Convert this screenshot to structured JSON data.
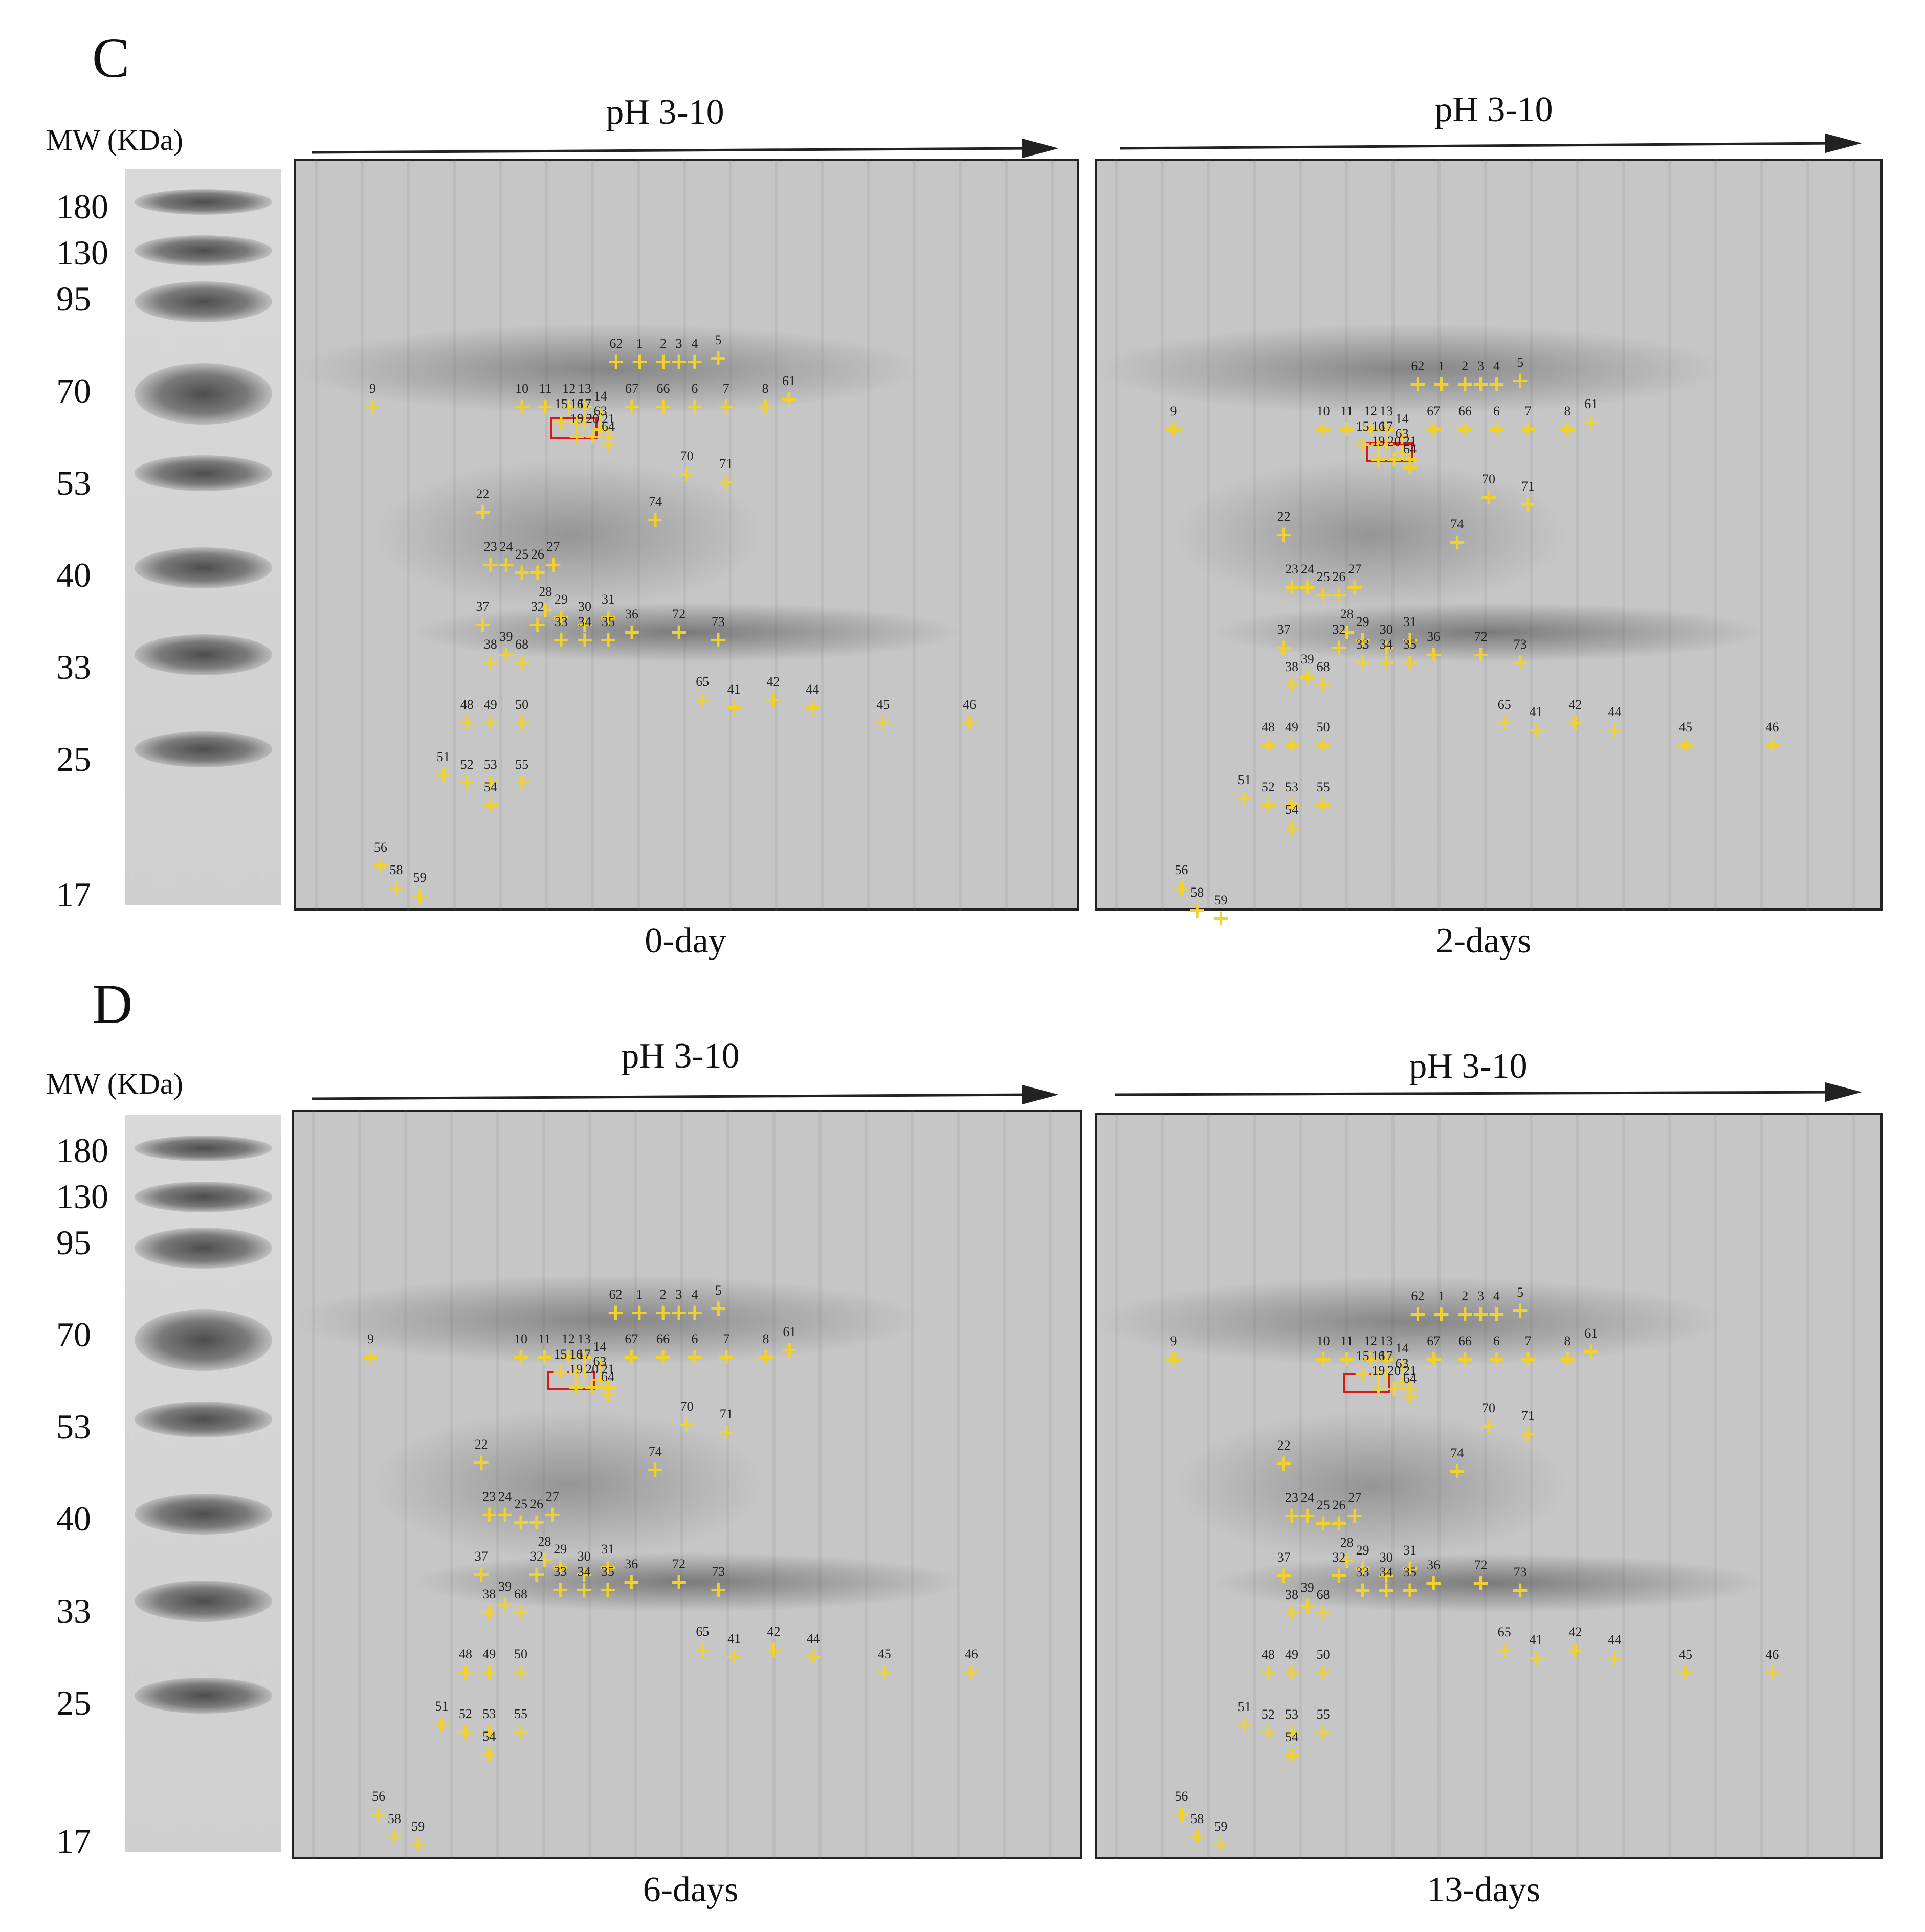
{
  "panels": [
    {
      "letter": "C",
      "mw_title": "MW (KDa)",
      "ph_left": "pH 3-10",
      "ph_right": "pH 3-10",
      "caption_left": "0-day",
      "caption_right": "2-days"
    },
    {
      "letter": "D",
      "mw_title": "MW (KDa)",
      "ph_left": "pH 3-10",
      "ph_right": "pH 3-10",
      "caption_left": "6-days",
      "caption_right": "13-days"
    }
  ],
  "mw_markers": [
    "180",
    "130",
    "95",
    "70",
    "53",
    "40",
    "33",
    "25",
    "17"
  ],
  "spot_colour": "#f2d22a",
  "highlight_colour": "#d61a1a",
  "spot_labels": [
    "1",
    "2",
    "3",
    "4",
    "5",
    "6",
    "7",
    "8",
    "9",
    "10",
    "11",
    "12",
    "13",
    "14",
    "15",
    "16",
    "17",
    "19",
    "20",
    "21",
    "22",
    "23",
    "24",
    "25",
    "26",
    "27",
    "28",
    "29",
    "30",
    "31",
    "32",
    "33",
    "34",
    "35",
    "36",
    "37",
    "38",
    "39",
    "41",
    "42",
    "44",
    "45",
    "46",
    "48",
    "49",
    "50",
    "51",
    "52",
    "53",
    "54",
    "55",
    "56",
    "58",
    "59",
    "61",
    "62",
    "63",
    "64",
    "65",
    "66",
    "67",
    "68",
    "70",
    "71",
    "72",
    "73",
    "74"
  ]
}
